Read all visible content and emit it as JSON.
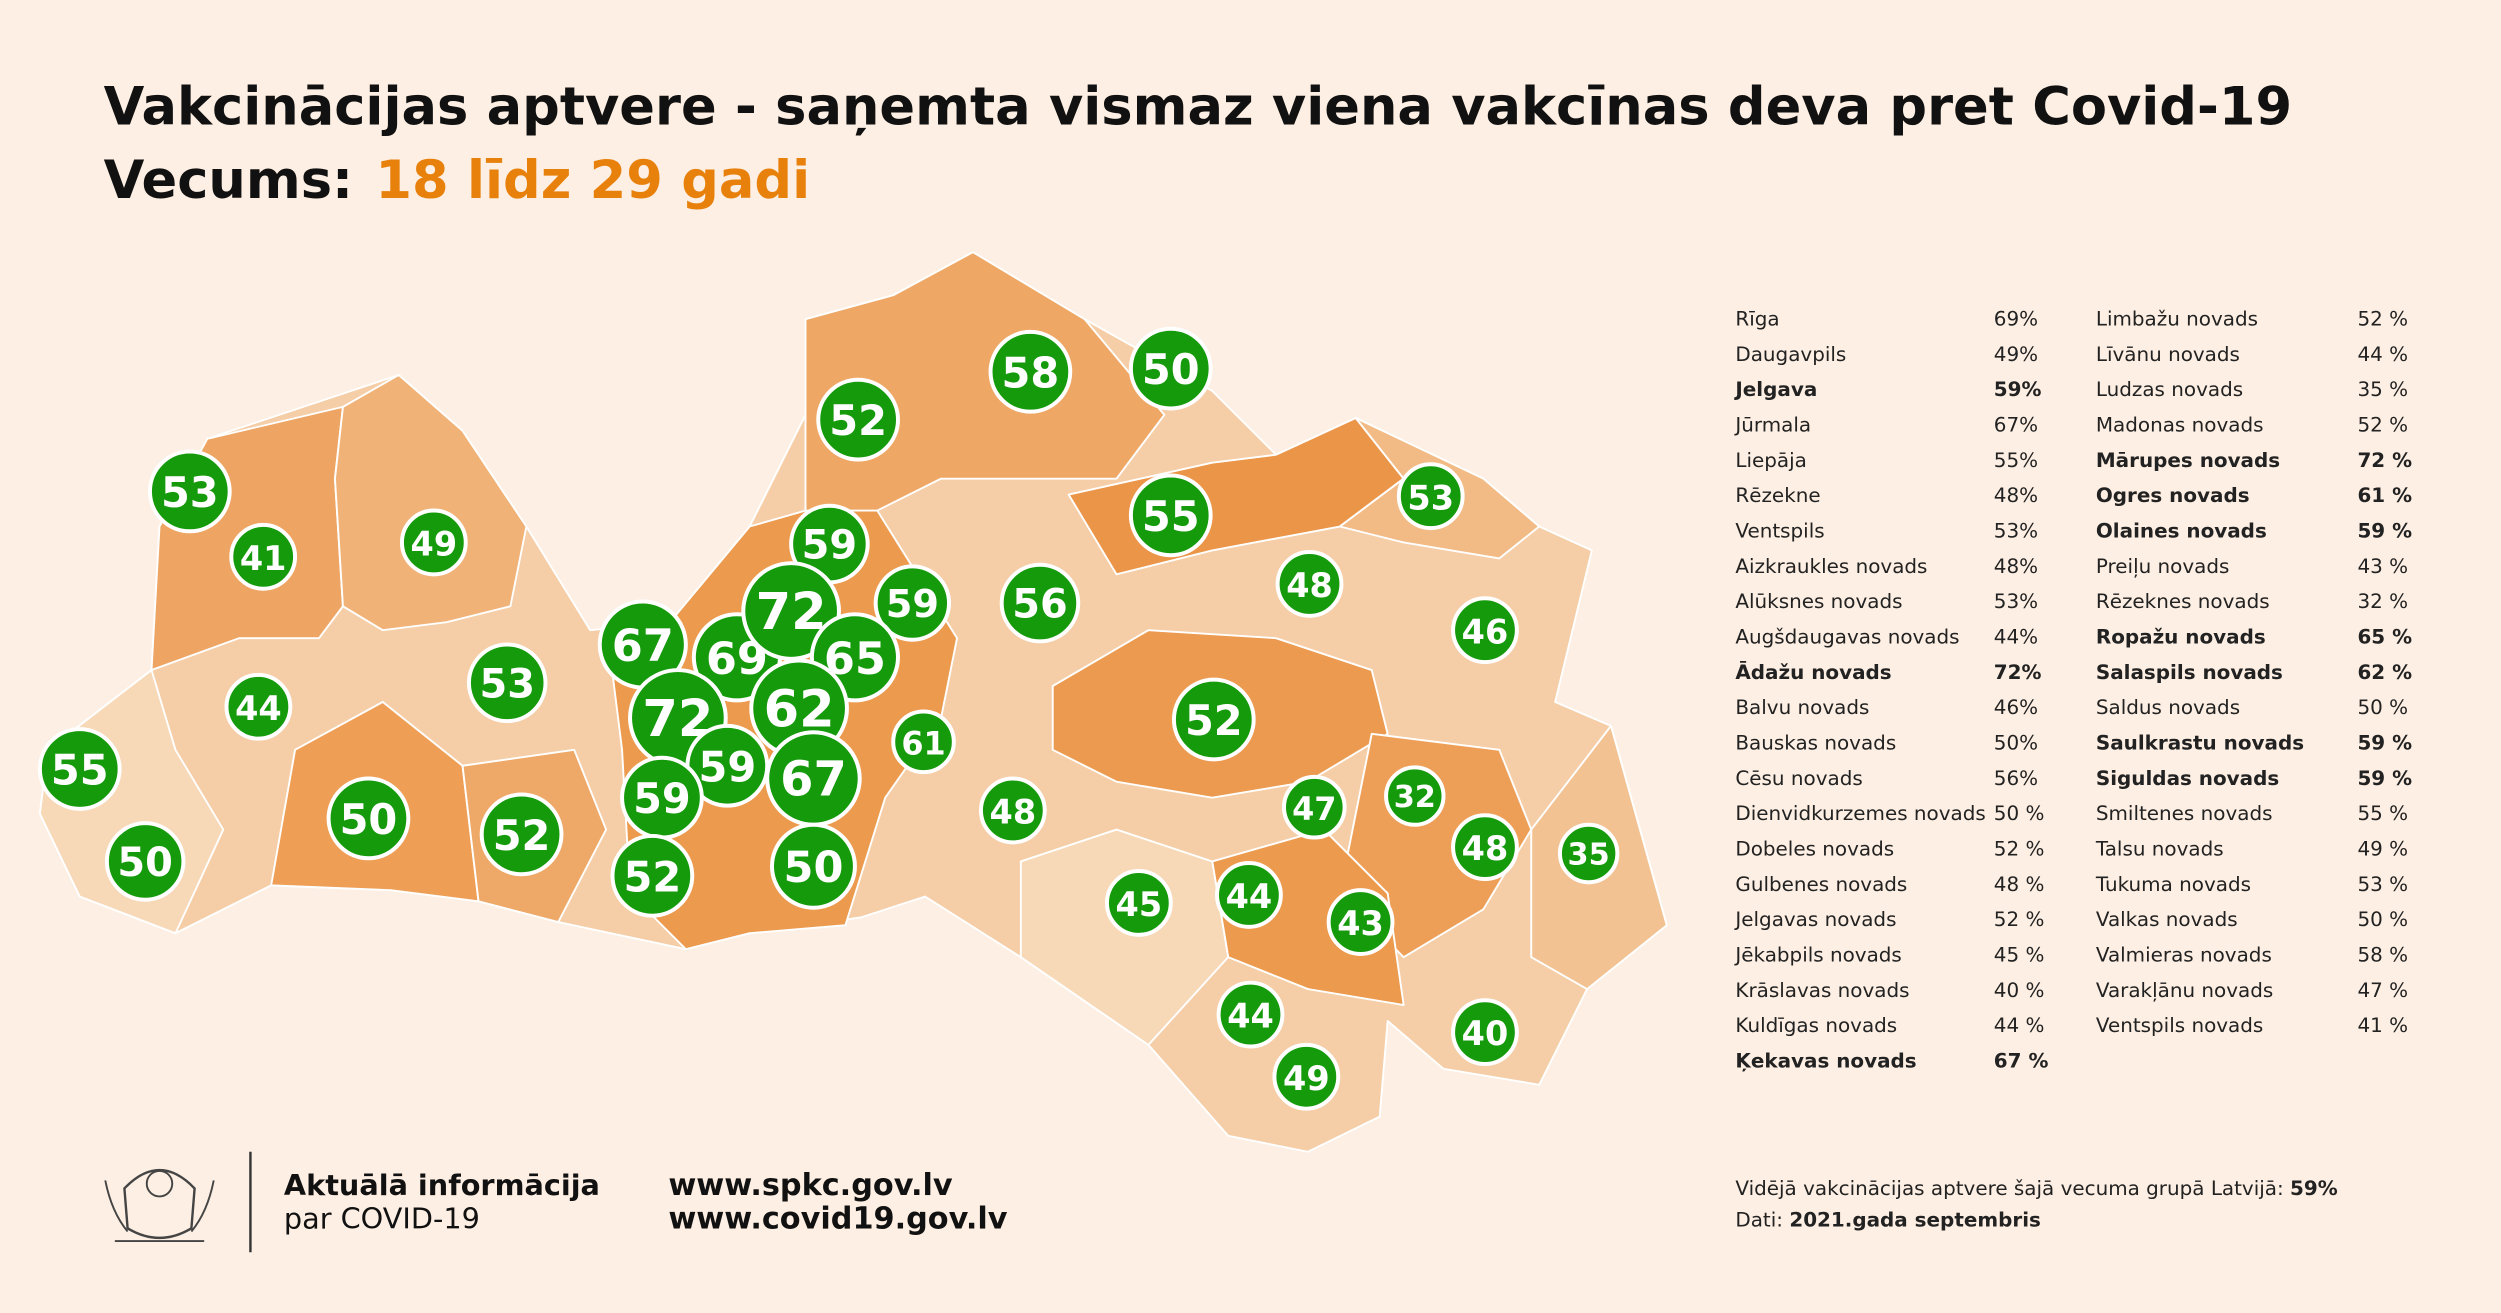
{
  "header": {
    "title": "Vakcinācijas aptvere - saņemta vismaz viena vakcīnas deva pret Covid-19",
    "age_label": "Vecums:",
    "age_value": "18 līdz 29 gadi"
  },
  "map": {
    "bubbles": [
      53,
      41,
      49,
      44,
      53,
      55,
      50,
      50,
      52,
      67,
      69,
      59,
      59,
      72,
      65,
      72,
      62,
      59,
      67,
      59,
      52,
      50,
      61,
      58,
      50,
      52,
      55,
      56,
      48,
      53,
      46,
      52,
      48,
      47,
      32,
      48,
      35,
      45,
      44,
      43,
      44,
      49,
      40
    ]
  },
  "table": {
    "left": [
      {
        "name": "Rīga",
        "value": "69%"
      },
      {
        "name": "Daugavpils",
        "value": "49%"
      },
      {
        "name": "Jelgava",
        "value": "59%",
        "bold": true
      },
      {
        "name": "Jūrmala",
        "value": "67%"
      },
      {
        "name": "Liepāja",
        "value": "55%"
      },
      {
        "name": "Rēzekne",
        "value": "48%"
      },
      {
        "name": "Ventspils",
        "value": "53%"
      },
      {
        "name": "Aizkraukles novads",
        "value": "48%"
      },
      {
        "name": "Alūksnes novads",
        "value": "53%"
      },
      {
        "name": "Augšdaugavas novads",
        "value": "44%"
      },
      {
        "name": "Ādažu novads",
        "value": "72%",
        "bold": true
      },
      {
        "name": "Balvu novads",
        "value": "46%"
      },
      {
        "name": "Bauskas novads",
        "value": "50%"
      },
      {
        "name": "Cēsu novads",
        "value": "56%"
      },
      {
        "name": "Dienvidkurzemes novads",
        "value": "50 %"
      },
      {
        "name": "Dobeles novads",
        "value": "52 %"
      },
      {
        "name": "Gulbenes novads",
        "value": "48 %"
      },
      {
        "name": "Jelgavas novads",
        "value": "52 %"
      },
      {
        "name": "Jēkabpils novads",
        "value": "45 %"
      },
      {
        "name": "Krāslavas novads",
        "value": "40 %"
      },
      {
        "name": "Kuldīgas novads",
        "value": "44 %"
      },
      {
        "name": "Ķekavas novads",
        "value": "67 %",
        "bold": true
      }
    ],
    "right": [
      {
        "name": "Limbažu novads",
        "value": "52 %"
      },
      {
        "name": "Līvānu novads",
        "value": "44 %"
      },
      {
        "name": "Ludzas novads",
        "value": "35 %"
      },
      {
        "name": "Madonas novads",
        "value": "52 %"
      },
      {
        "name": "Mārupes novads",
        "value": "72 %",
        "bold": true
      },
      {
        "name": "Ogres novads",
        "value": "61 %",
        "bold": true
      },
      {
        "name": "Olaines novads",
        "value": "59 %",
        "bold": true
      },
      {
        "name": "Preiļu novads",
        "value": "43 %"
      },
      {
        "name": "Rēzeknes novads",
        "value": "32 %"
      },
      {
        "name": "Ropažu novads",
        "value": "65 %",
        "bold": true
      },
      {
        "name": "Salaspils novads",
        "value": "62 %",
        "bold": true
      },
      {
        "name": "Saldus novads",
        "value": "50 %"
      },
      {
        "name": "Saulkrastu novads",
        "value": "59 %",
        "bold": true
      },
      {
        "name": "Siguldas novads",
        "value": "59 %",
        "bold": true
      },
      {
        "name": "Smiltenes novads",
        "value": "55 %"
      },
      {
        "name": "Talsu novads",
        "value": "49 %"
      },
      {
        "name": "Tukuma novads",
        "value": "53 %"
      },
      {
        "name": "Valkas novads",
        "value": "50 %"
      },
      {
        "name": "Valmieras novads",
        "value": "58 %"
      },
      {
        "name": "Varakļānu novads",
        "value": "47 %"
      },
      {
        "name": "Ventspils novads",
        "value": "41 %"
      }
    ]
  },
  "footer": {
    "info_line1": "Aktuālā informācija",
    "info_line2": "par COVID-19",
    "url1": "www.spkc.gov.lv",
    "url2": "www.covid19.gov.lv",
    "average_label": "Vidējā vakcinācijas aptvere šajā vecuma grupā Latvijā: ",
    "average_value": "59%",
    "date_label": "Dati: ",
    "date_value": "2021.gada septembris"
  }
}
